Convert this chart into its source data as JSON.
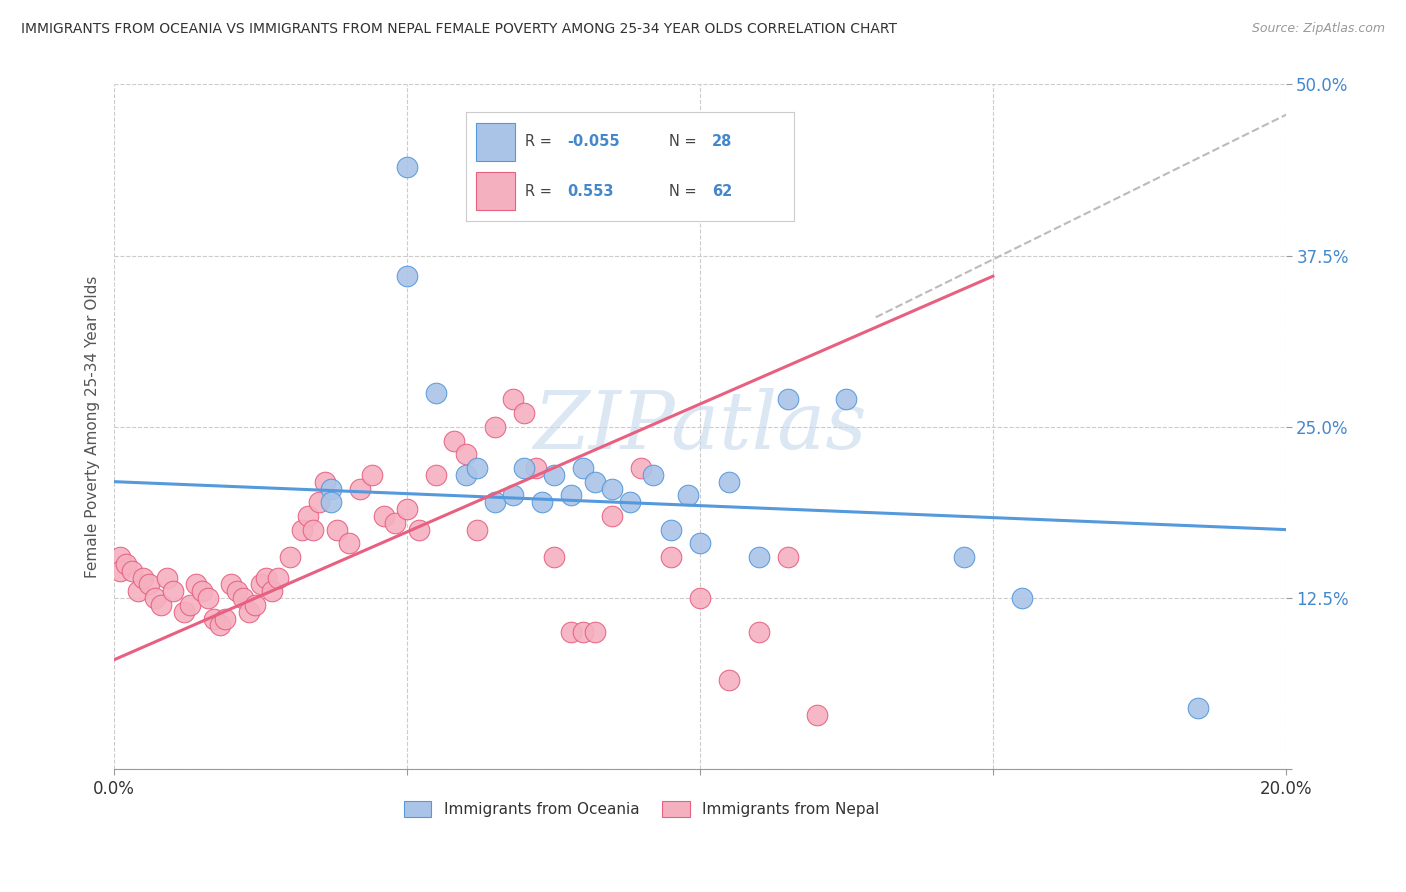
{
  "title": "IMMIGRANTS FROM OCEANIA VS IMMIGRANTS FROM NEPAL FEMALE POVERTY AMONG 25-34 YEAR OLDS CORRELATION CHART",
  "source": "Source: ZipAtlas.com",
  "ylabel": "Female Poverty Among 25-34 Year Olds",
  "xlim": [
    0,
    0.2
  ],
  "ylim": [
    0,
    0.5
  ],
  "xticks": [
    0.0,
    0.05,
    0.1,
    0.15,
    0.2
  ],
  "yticks": [
    0.0,
    0.125,
    0.25,
    0.375,
    0.5
  ],
  "background_color": "#ffffff",
  "grid_color": "#cccccc",
  "watermark": "ZIPatlas",
  "oceania_color": "#aac4e8",
  "nepal_color": "#f5b0c0",
  "oceania_line_color": "#5599dd",
  "nepal_line_color": "#e86080",
  "trendline_dash_color": "#bbbbbb",
  "R_oceania": -0.055,
  "N_oceania": 28,
  "R_nepal": 0.553,
  "N_nepal": 62,
  "oceania_trendline": [
    0.0,
    0.2,
    0.21,
    0.175
  ],
  "nepal_trendline": [
    0.0,
    0.15,
    0.08,
    0.36
  ],
  "nepal_dash_trendline": [
    0.13,
    0.22,
    0.33,
    0.52
  ],
  "oceania_x": [
    0.037,
    0.037,
    0.05,
    0.05,
    0.055,
    0.06,
    0.062,
    0.065,
    0.068,
    0.07,
    0.073,
    0.075,
    0.078,
    0.08,
    0.082,
    0.085,
    0.088,
    0.092,
    0.095,
    0.098,
    0.1,
    0.105,
    0.11,
    0.115,
    0.125,
    0.145,
    0.155,
    0.185
  ],
  "oceania_y": [
    0.205,
    0.195,
    0.44,
    0.36,
    0.275,
    0.215,
    0.22,
    0.195,
    0.2,
    0.22,
    0.195,
    0.215,
    0.2,
    0.22,
    0.21,
    0.205,
    0.195,
    0.215,
    0.175,
    0.2,
    0.165,
    0.21,
    0.155,
    0.27,
    0.27,
    0.155,
    0.125,
    0.045
  ],
  "nepal_x": [
    0.001,
    0.001,
    0.002,
    0.003,
    0.004,
    0.005,
    0.006,
    0.007,
    0.008,
    0.009,
    0.01,
    0.012,
    0.013,
    0.014,
    0.015,
    0.016,
    0.017,
    0.018,
    0.019,
    0.02,
    0.021,
    0.022,
    0.023,
    0.024,
    0.025,
    0.026,
    0.027,
    0.028,
    0.03,
    0.032,
    0.033,
    0.034,
    0.035,
    0.036,
    0.038,
    0.04,
    0.042,
    0.044,
    0.046,
    0.048,
    0.05,
    0.052,
    0.055,
    0.058,
    0.06,
    0.062,
    0.065,
    0.068,
    0.07,
    0.072,
    0.075,
    0.078,
    0.08,
    0.082,
    0.085,
    0.09,
    0.095,
    0.1,
    0.105,
    0.11,
    0.115,
    0.12
  ],
  "nepal_y": [
    0.155,
    0.145,
    0.15,
    0.145,
    0.13,
    0.14,
    0.135,
    0.125,
    0.12,
    0.14,
    0.13,
    0.115,
    0.12,
    0.135,
    0.13,
    0.125,
    0.11,
    0.105,
    0.11,
    0.135,
    0.13,
    0.125,
    0.115,
    0.12,
    0.135,
    0.14,
    0.13,
    0.14,
    0.155,
    0.175,
    0.185,
    0.175,
    0.195,
    0.21,
    0.175,
    0.165,
    0.205,
    0.215,
    0.185,
    0.18,
    0.19,
    0.175,
    0.215,
    0.24,
    0.23,
    0.175,
    0.25,
    0.27,
    0.26,
    0.22,
    0.155,
    0.1,
    0.1,
    0.1,
    0.185,
    0.22,
    0.155,
    0.125,
    0.065,
    0.1,
    0.155,
    0.04
  ]
}
